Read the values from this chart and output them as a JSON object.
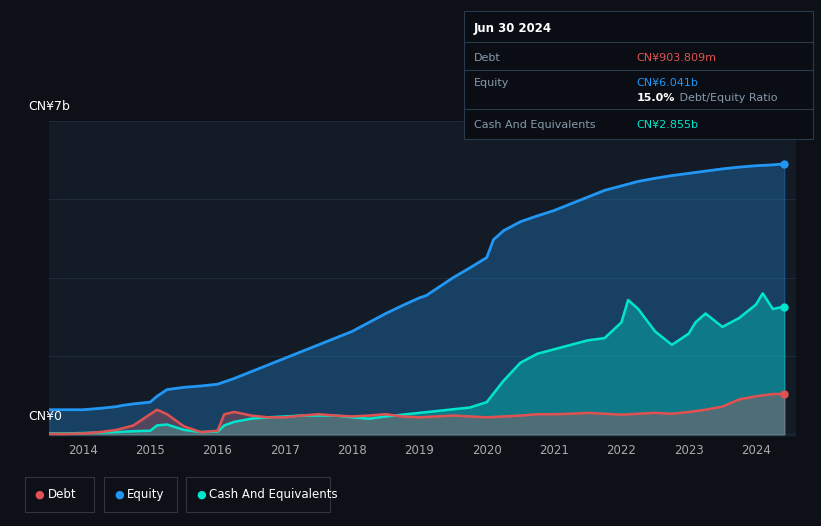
{
  "bg_color": "#0d1117",
  "plot_bg_color": "#131b26",
  "grid_color": "#1e2d3d",
  "title_date": "Jun 30 2024",
  "debt_label": "Debt",
  "equity_label": "Equity",
  "cash_label": "Cash And Equivalents",
  "debt_value": "CN¥903.809m",
  "equity_value": "CN¥6.041b",
  "ratio_text": "15.0%",
  "ratio_suffix": " Debt/Equity Ratio",
  "cash_value": "CN¥2.855b",
  "debt_color": "#e05252",
  "equity_color": "#2196f3",
  "cash_color": "#00e5cc",
  "ylabel_top": "CN¥7b",
  "ylabel_bot": "CN¥0",
  "x_ticks": [
    2014,
    2015,
    2016,
    2017,
    2018,
    2019,
    2020,
    2021,
    2022,
    2023,
    2024
  ],
  "equity_data": {
    "x": [
      2013.5,
      2013.75,
      2014.0,
      2014.25,
      2014.5,
      2014.6,
      2014.75,
      2015.0,
      2015.1,
      2015.25,
      2015.5,
      2015.75,
      2016.0,
      2016.25,
      2016.5,
      2016.75,
      2017.0,
      2017.25,
      2017.5,
      2017.75,
      2018.0,
      2018.25,
      2018.5,
      2018.75,
      2019.0,
      2019.1,
      2019.25,
      2019.5,
      2019.75,
      2020.0,
      2020.1,
      2020.25,
      2020.5,
      2020.75,
      2021.0,
      2021.25,
      2021.5,
      2021.75,
      2022.0,
      2022.25,
      2022.5,
      2022.75,
      2023.0,
      2023.25,
      2023.5,
      2023.75,
      2024.0,
      2024.25,
      2024.42
    ],
    "y": [
      0.55,
      0.55,
      0.55,
      0.58,
      0.62,
      0.65,
      0.68,
      0.72,
      0.85,
      1.0,
      1.05,
      1.08,
      1.12,
      1.25,
      1.4,
      1.55,
      1.7,
      1.85,
      2.0,
      2.15,
      2.3,
      2.5,
      2.7,
      2.88,
      3.05,
      3.1,
      3.25,
      3.5,
      3.72,
      3.95,
      4.35,
      4.55,
      4.75,
      4.88,
      5.0,
      5.15,
      5.3,
      5.45,
      5.55,
      5.65,
      5.72,
      5.78,
      5.83,
      5.88,
      5.93,
      5.97,
      6.0,
      6.02,
      6.041
    ]
  },
  "cash_data": {
    "x": [
      2013.5,
      2013.75,
      2014.0,
      2014.25,
      2014.5,
      2014.75,
      2015.0,
      2015.1,
      2015.25,
      2015.5,
      2015.75,
      2016.0,
      2016.1,
      2016.25,
      2016.5,
      2016.75,
      2017.0,
      2017.25,
      2017.5,
      2017.75,
      2018.0,
      2018.25,
      2018.5,
      2018.75,
      2019.0,
      2019.25,
      2019.5,
      2019.75,
      2020.0,
      2020.25,
      2020.5,
      2020.75,
      2021.0,
      2021.25,
      2021.5,
      2021.75,
      2022.0,
      2022.1,
      2022.25,
      2022.4,
      2022.5,
      2022.75,
      2023.0,
      2023.1,
      2023.25,
      2023.5,
      2023.75,
      2024.0,
      2024.1,
      2024.25,
      2024.42
    ],
    "y": [
      0.02,
      0.02,
      0.03,
      0.04,
      0.05,
      0.07,
      0.08,
      0.2,
      0.22,
      0.1,
      0.05,
      0.06,
      0.2,
      0.28,
      0.35,
      0.38,
      0.4,
      0.42,
      0.42,
      0.42,
      0.38,
      0.35,
      0.4,
      0.44,
      0.48,
      0.52,
      0.56,
      0.6,
      0.72,
      1.2,
      1.6,
      1.8,
      1.9,
      2.0,
      2.1,
      2.15,
      2.5,
      3.0,
      2.8,
      2.5,
      2.3,
      2.0,
      2.25,
      2.5,
      2.7,
      2.4,
      2.6,
      2.9,
      3.15,
      2.8,
      2.855
    ]
  },
  "debt_data": {
    "x": [
      2013.5,
      2013.75,
      2014.0,
      2014.25,
      2014.5,
      2014.75,
      2015.0,
      2015.1,
      2015.25,
      2015.5,
      2015.75,
      2016.0,
      2016.1,
      2016.25,
      2016.5,
      2016.75,
      2017.0,
      2017.25,
      2017.5,
      2017.75,
      2018.0,
      2018.25,
      2018.5,
      2018.75,
      2019.0,
      2019.25,
      2019.5,
      2019.75,
      2020.0,
      2020.25,
      2020.5,
      2020.75,
      2021.0,
      2021.25,
      2021.5,
      2021.75,
      2022.0,
      2022.25,
      2022.5,
      2022.75,
      2023.0,
      2023.25,
      2023.5,
      2023.75,
      2024.0,
      2024.25,
      2024.42
    ],
    "y": [
      0.01,
      0.01,
      0.02,
      0.05,
      0.1,
      0.2,
      0.45,
      0.55,
      0.45,
      0.18,
      0.05,
      0.08,
      0.45,
      0.5,
      0.42,
      0.38,
      0.38,
      0.42,
      0.45,
      0.42,
      0.4,
      0.42,
      0.45,
      0.4,
      0.38,
      0.4,
      0.42,
      0.4,
      0.38,
      0.4,
      0.42,
      0.45,
      0.45,
      0.46,
      0.48,
      0.46,
      0.44,
      0.46,
      0.48,
      0.46,
      0.5,
      0.55,
      0.62,
      0.78,
      0.85,
      0.9,
      0.9038
    ]
  },
  "xlim": [
    2013.5,
    2024.6
  ],
  "ylim": [
    -0.05,
    7.0
  ],
  "y_grid": [
    0,
    1.75,
    3.5,
    5.25,
    7.0
  ]
}
